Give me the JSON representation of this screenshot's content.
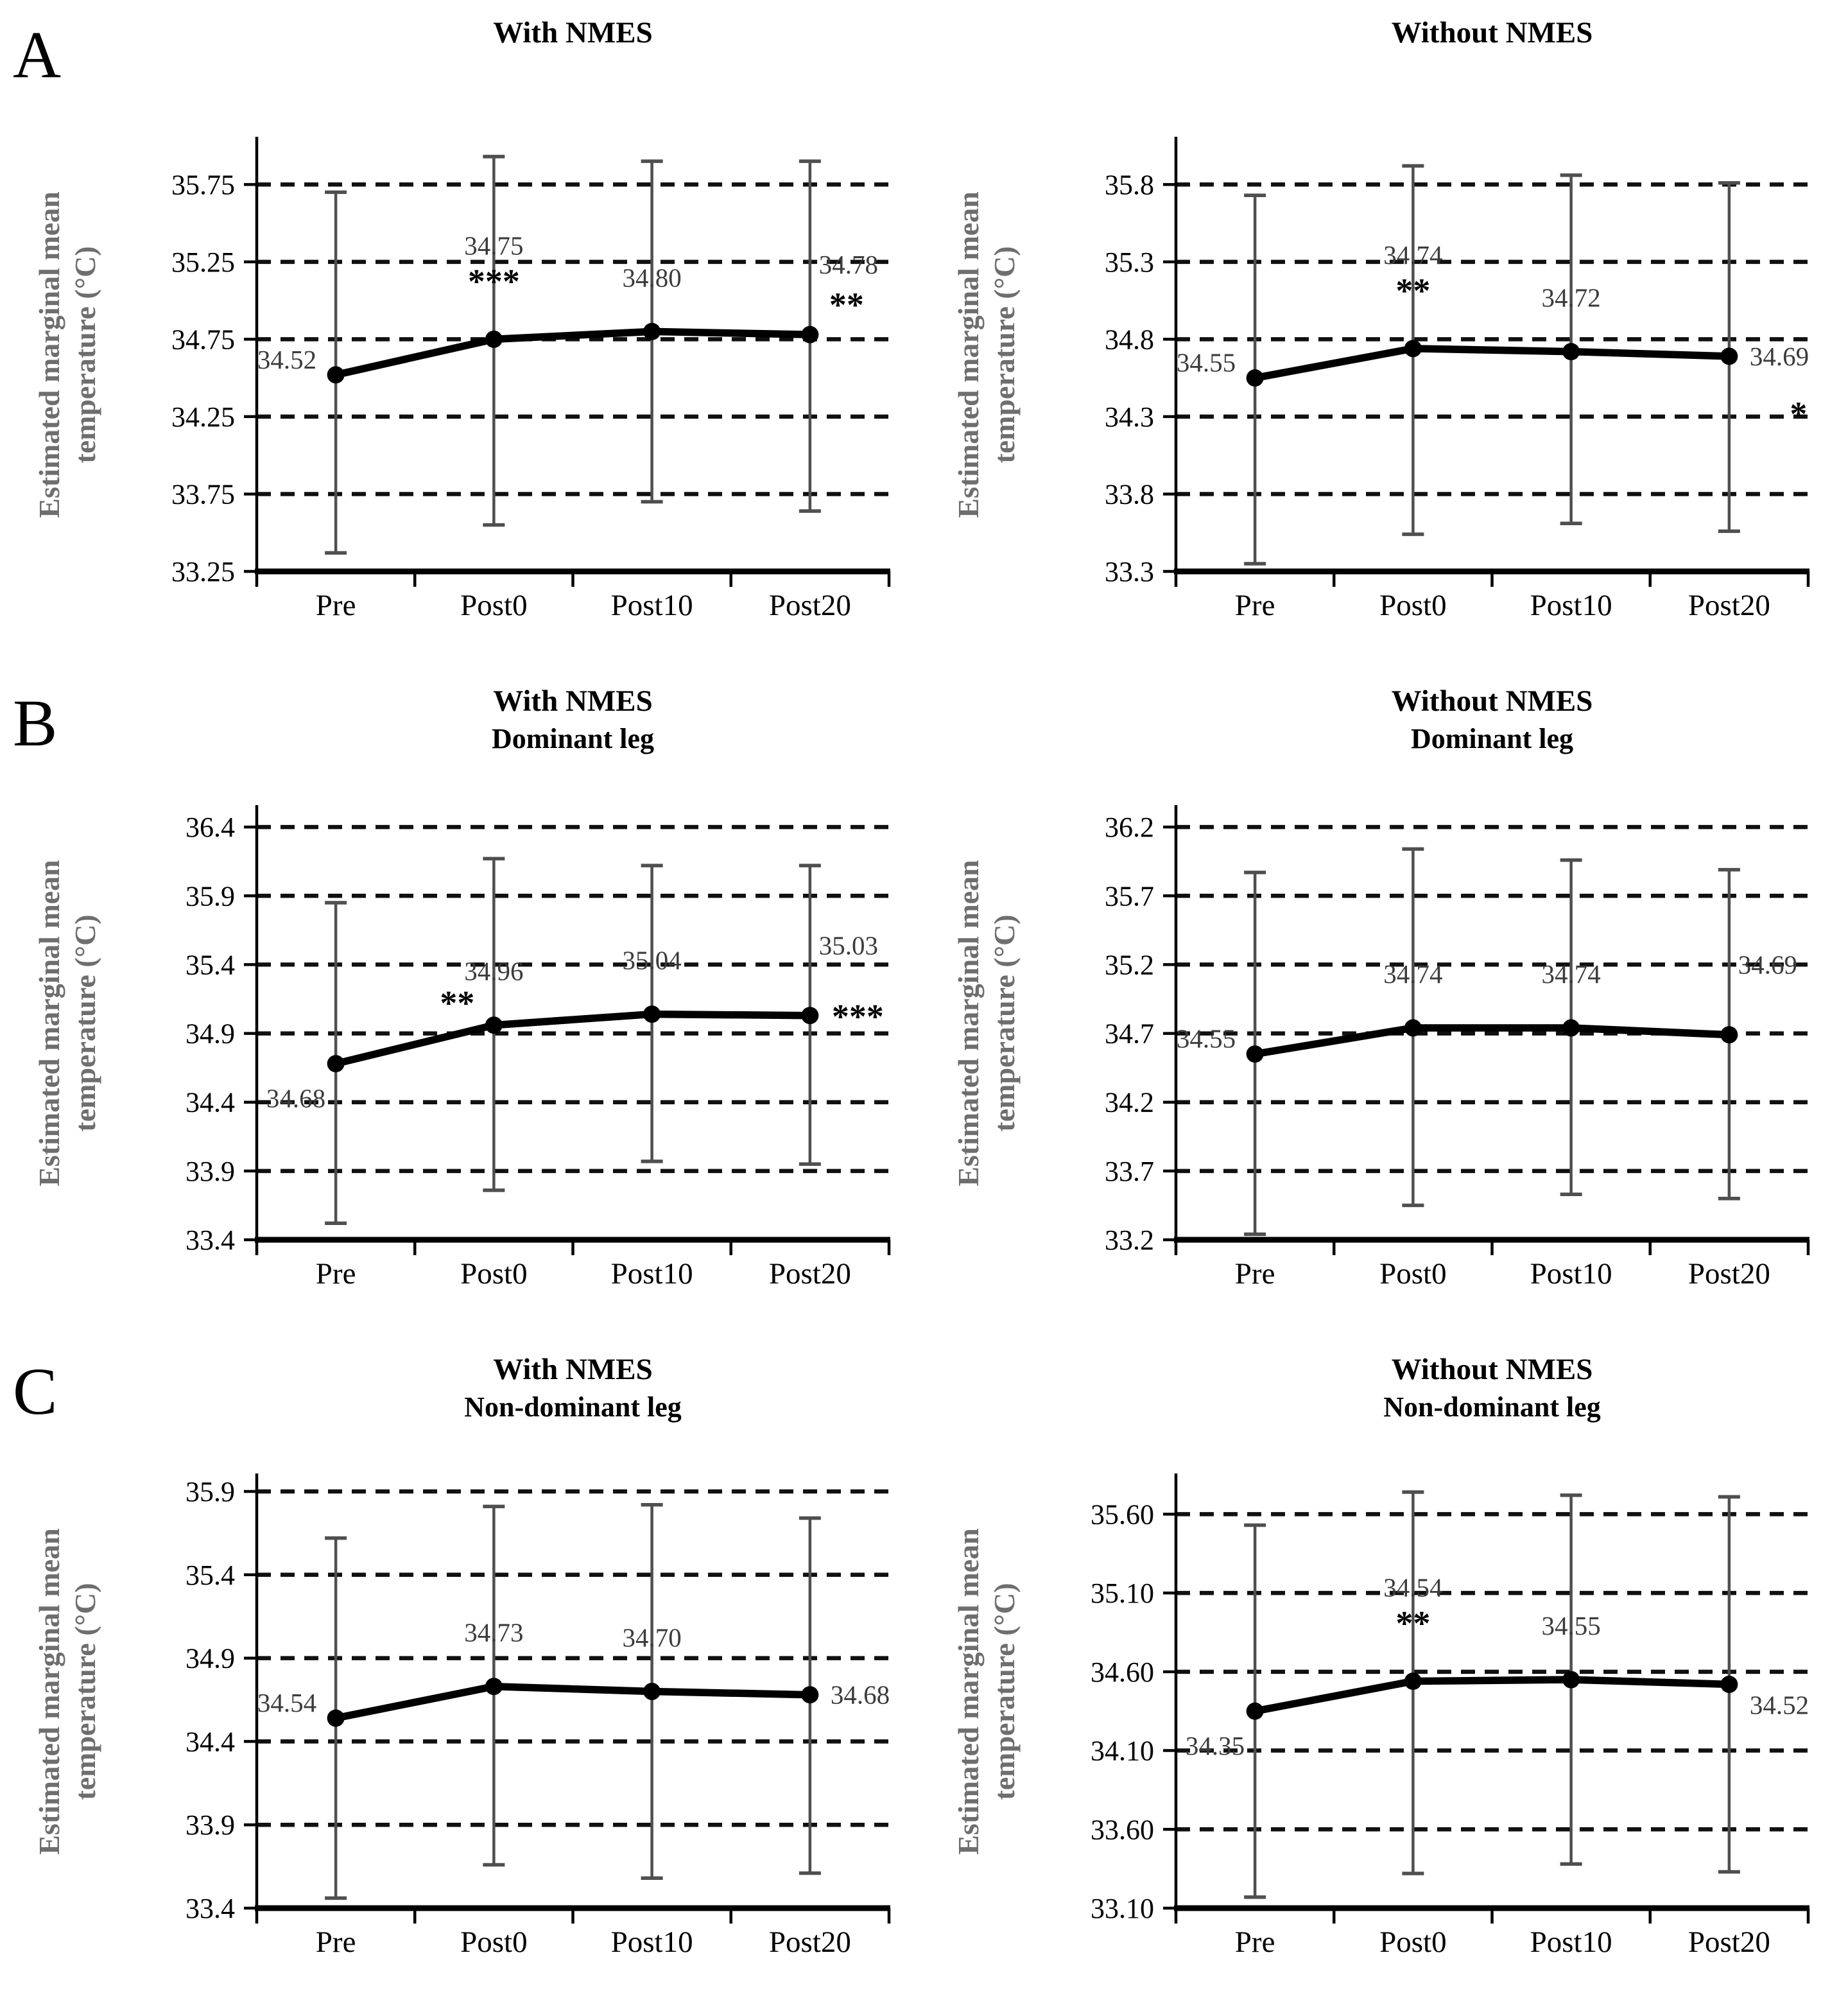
{
  "figure": {
    "panel_letters": [
      "A",
      "B",
      "C"
    ],
    "ylabel_line1": "Estimated marginal mean",
    "ylabel_line2": "temperature (°C)",
    "colors": {
      "series_line": "#000000",
      "data_point": "#000000",
      "error_bar": "#4f4f4f",
      "gridline": "#101010",
      "axis": "#000000",
      "ylabel_text": "#6e6e6e",
      "data_label_text": "#3b3b3b",
      "background": "#ffffff"
    }
  },
  "chart_data": [
    {
      "type": "line",
      "panel": "A",
      "column": "left",
      "title": "With NMES",
      "subtitle": "",
      "ylabel": "Estimated marginal mean temperature (°C)",
      "xlabel": "",
      "grid": "dashed-horizontal",
      "legend": "none",
      "categories": [
        "Pre",
        "Post0",
        "Post10",
        "Post20"
      ],
      "values": [
        34.52,
        34.75,
        34.8,
        34.78
      ],
      "value_labels": [
        "34.52",
        "34.75",
        "34.80",
        "34.78"
      ],
      "error_upper": [
        35.7,
        35.93,
        35.9,
        35.9
      ],
      "error_lower": [
        33.37,
        33.55,
        33.7,
        33.64
      ],
      "significance": [
        "",
        "***",
        "",
        "**"
      ],
      "sig_pos": [
        "",
        "above",
        "",
        "right-up"
      ],
      "label_pos": [
        "left",
        "above-sig",
        "above",
        "above-right"
      ],
      "ylim": [
        33.25,
        36.05
      ],
      "ytick_values": [
        33.25,
        33.75,
        34.25,
        34.75,
        35.25,
        35.75
      ],
      "ytick_labels": [
        "33.25",
        "33.75",
        "34.25",
        "34.75",
        "35.25",
        "35.75"
      ]
    },
    {
      "type": "line",
      "panel": "A",
      "column": "right",
      "title": "Without NMES",
      "subtitle": "",
      "ylabel": "Estimated marginal mean temperature (°C)",
      "xlabel": "",
      "grid": "dashed-horizontal",
      "legend": "none",
      "categories": [
        "Pre",
        "Post0",
        "Post10",
        "Post20"
      ],
      "values": [
        34.55,
        34.74,
        34.72,
        34.69
      ],
      "value_labels": [
        "34.55",
        "34.74",
        "34.72",
        "34.69"
      ],
      "error_upper": [
        35.73,
        35.92,
        35.86,
        35.81
      ],
      "error_lower": [
        33.35,
        33.54,
        33.61,
        33.56
      ],
      "significance": [
        "",
        "**",
        "",
        "*"
      ],
      "sig_pos": [
        "",
        "above",
        "",
        "below-right"
      ],
      "label_pos": [
        "left",
        "above-sig",
        "above",
        "right"
      ],
      "ylim": [
        33.3,
        36.1
      ],
      "ytick_values": [
        33.3,
        33.8,
        34.3,
        34.8,
        35.3,
        35.8
      ],
      "ytick_labels": [
        "33.3",
        "33.8",
        "34.3",
        "34.8",
        "35.3",
        "35.8"
      ]
    },
    {
      "type": "line",
      "panel": "B",
      "column": "left",
      "title": "With NMES",
      "subtitle": "Dominant leg",
      "ylabel": "Estimated marginal mean temperature (°C)",
      "xlabel": "",
      "grid": "dashed-horizontal",
      "legend": "none",
      "categories": [
        "Pre",
        "Post0",
        "Post10",
        "Post20"
      ],
      "values": [
        34.68,
        34.96,
        35.04,
        35.03
      ],
      "value_labels": [
        "34.68",
        "34.96",
        "35.04",
        "35.03"
      ],
      "error_upper": [
        35.85,
        36.17,
        36.12,
        36.12
      ],
      "error_lower": [
        33.52,
        33.76,
        33.97,
        33.95
      ],
      "significance": [
        "",
        "**",
        "",
        "***"
      ],
      "sig_pos": [
        "",
        "left-up",
        "",
        "right-mid"
      ],
      "label_pos": [
        "below-left",
        "above",
        "above",
        "above-right"
      ],
      "ylim": [
        33.4,
        36.55
      ],
      "ytick_values": [
        33.4,
        33.9,
        34.4,
        34.9,
        35.4,
        35.9,
        36.4
      ],
      "ytick_labels": [
        "33.4",
        "33.9",
        "34.4",
        "34.9",
        "35.4",
        "35.9",
        "36.4"
      ]
    },
    {
      "type": "line",
      "panel": "B",
      "column": "right",
      "title": "Without NMES",
      "subtitle": "Dominant leg",
      "ylabel": "Estimated marginal mean temperature (°C)",
      "xlabel": "",
      "grid": "dashed-horizontal",
      "legend": "none",
      "categories": [
        "Pre",
        "Post0",
        "Post10",
        "Post20"
      ],
      "values": [
        34.55,
        34.74,
        34.74,
        34.69
      ],
      "value_labels": [
        "34.55",
        "34.74",
        "34.74",
        "34.69"
      ],
      "error_upper": [
        35.87,
        36.04,
        35.96,
        35.89
      ],
      "error_lower": [
        33.24,
        33.45,
        33.53,
        33.5
      ],
      "significance": [
        "",
        "",
        "",
        ""
      ],
      "sig_pos": [
        "",
        "",
        "",
        ""
      ],
      "label_pos": [
        "left",
        "above",
        "above",
        "above-right"
      ],
      "ylim": [
        33.2,
        36.35
      ],
      "ytick_values": [
        33.2,
        33.7,
        34.2,
        34.7,
        35.2,
        35.7,
        36.2
      ],
      "ytick_labels": [
        "33.2",
        "33.7",
        "34.2",
        "34.7",
        "35.2",
        "35.7",
        "36.2"
      ]
    },
    {
      "type": "line",
      "panel": "C",
      "column": "left",
      "title": "With NMES",
      "subtitle": "Non-dominant leg",
      "ylabel": "Estimated marginal mean temperature (°C)",
      "xlabel": "",
      "grid": "dashed-horizontal",
      "legend": "none",
      "categories": [
        "Pre",
        "Post0",
        "Post10",
        "Post20"
      ],
      "values": [
        34.54,
        34.73,
        34.7,
        34.68
      ],
      "value_labels": [
        "34.54",
        "34.73",
        "34.70",
        "34.68"
      ],
      "error_upper": [
        35.62,
        35.81,
        35.82,
        35.74
      ],
      "error_lower": [
        33.46,
        33.66,
        33.58,
        33.61
      ],
      "significance": [
        "",
        "",
        "",
        ""
      ],
      "sig_pos": [
        "",
        "",
        "",
        ""
      ],
      "label_pos": [
        "left",
        "above",
        "above",
        "right"
      ],
      "ylim": [
        33.4,
        36.0
      ],
      "ytick_values": [
        33.4,
        33.9,
        34.4,
        34.9,
        35.4,
        35.9
      ],
      "ytick_labels": [
        "33.4",
        "33.9",
        "34.4",
        "34.9",
        "35.4",
        "35.9"
      ]
    },
    {
      "type": "line",
      "panel": "C",
      "column": "right",
      "title": "Without NMES",
      "subtitle": "Non-dominant leg",
      "ylabel": "Estimated marginal mean temperature (°C)",
      "xlabel": "",
      "grid": "dashed-horizontal",
      "legend": "none",
      "categories": [
        "Pre",
        "Post0",
        "Post10",
        "Post20"
      ],
      "values": [
        34.35,
        34.54,
        34.55,
        34.52
      ],
      "value_labels": [
        "34.35",
        "34.54",
        "34.55",
        "34.52"
      ],
      "error_upper": [
        35.53,
        35.74,
        35.72,
        35.71
      ],
      "error_lower": [
        33.17,
        33.32,
        33.38,
        33.33
      ],
      "significance": [
        "",
        "**",
        "",
        ""
      ],
      "sig_pos": [
        "",
        "above",
        "",
        ""
      ],
      "label_pos": [
        "below-left",
        "above-sig",
        "above",
        "right-low"
      ],
      "ylim": [
        33.1,
        35.85
      ],
      "ytick_values": [
        33.1,
        33.6,
        34.1,
        34.6,
        35.1,
        35.6
      ],
      "ytick_labels": [
        "33.10",
        "33.60",
        "34.10",
        "34.60",
        "35.10",
        "35.60"
      ]
    }
  ]
}
